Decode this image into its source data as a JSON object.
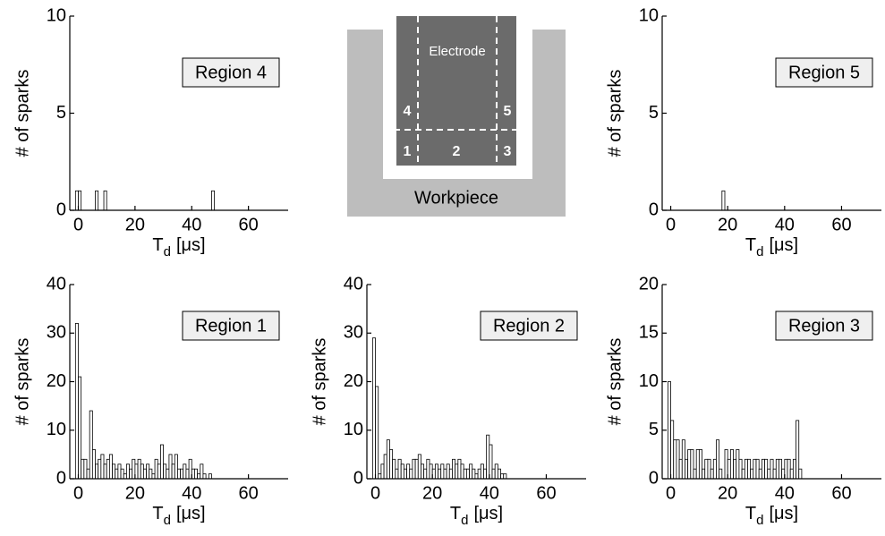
{
  "diagram": {
    "electrode": "Electrode",
    "workpiece": "Workpiece",
    "regions": [
      "1",
      "2",
      "3",
      "4",
      "5"
    ]
  },
  "chart_data": [
    {
      "type": "histogram",
      "title": "Region 4",
      "color": "#ffffff",
      "edgecolor": "#000000",
      "bins": [
        -1,
        0,
        1,
        2,
        3,
        4,
        5,
        6,
        7,
        8,
        9,
        10,
        11,
        12,
        13,
        14,
        15,
        16,
        17,
        18,
        19,
        20,
        21,
        22,
        23,
        24,
        25,
        26,
        27,
        28,
        29,
        30,
        31,
        32,
        33,
        34,
        35,
        36,
        37,
        38,
        39,
        40,
        41,
        42,
        43,
        44,
        45,
        46,
        47,
        48
      ],
      "counts": [
        1,
        1,
        0,
        0,
        0,
        0,
        0,
        1,
        0,
        0,
        1,
        0,
        0,
        0,
        0,
        0,
        0,
        0,
        0,
        0,
        0,
        0,
        0,
        0,
        0,
        0,
        0,
        0,
        0,
        0,
        0,
        0,
        0,
        0,
        0,
        0,
        0,
        0,
        0,
        0,
        0,
        0,
        0,
        0,
        0,
        0,
        0,
        0,
        1
      ],
      "xlim": [
        -3,
        74
      ],
      "ylim": [
        0,
        10
      ],
      "xticks": [
        0,
        20,
        40,
        60
      ],
      "yticks": [
        0,
        5,
        10
      ],
      "x_label": [
        "T",
        "d",
        "[μs]"
      ],
      "y_label": "# of sparks"
    },
    {
      "type": "histogram",
      "title": "Region 5",
      "color": "#ffffff",
      "edgecolor": "#000000",
      "bins": [
        -1,
        0,
        1,
        2,
        3,
        4,
        5,
        6,
        7,
        8,
        9,
        10,
        11,
        12,
        13,
        14,
        15,
        16,
        17,
        18,
        19,
        20,
        21,
        22,
        23,
        24,
        25,
        26,
        27,
        28,
        29,
        30,
        31,
        32,
        33,
        34,
        35,
        36,
        37,
        38,
        39,
        40,
        41,
        42,
        43,
        44,
        45,
        46,
        47,
        48
      ],
      "counts": [
        0,
        0,
        0,
        0,
        0,
        0,
        0,
        0,
        0,
        0,
        0,
        0,
        0,
        0,
        0,
        0,
        0,
        0,
        0,
        1,
        0,
        0,
        0,
        0,
        0,
        0,
        0,
        0,
        0,
        0,
        0,
        0,
        0,
        0,
        0,
        0,
        0,
        0,
        0,
        0,
        0,
        0,
        0,
        0,
        0,
        0,
        0,
        0,
        0
      ],
      "xlim": [
        -3,
        74
      ],
      "ylim": [
        0,
        10
      ],
      "xticks": [
        0,
        20,
        40,
        60
      ],
      "yticks": [
        0,
        5,
        10
      ],
      "x_label": [
        "T",
        "d",
        "[μs]"
      ],
      "y_label": "# of sparks"
    },
    {
      "type": "histogram",
      "title": "Region 1",
      "color": "#ffffff",
      "edgecolor": "#000000",
      "bins": [
        -1,
        0,
        1,
        2,
        3,
        4,
        5,
        6,
        7,
        8,
        9,
        10,
        11,
        12,
        13,
        14,
        15,
        16,
        17,
        18,
        19,
        20,
        21,
        22,
        23,
        24,
        25,
        26,
        27,
        28,
        29,
        30,
        31,
        32,
        33,
        34,
        35,
        36,
        37,
        38,
        39,
        40,
        41,
        42,
        43,
        44,
        45,
        46,
        47,
        48
      ],
      "counts": [
        32,
        21,
        4,
        4,
        2,
        14,
        6,
        3,
        4,
        5,
        3,
        4,
        5,
        3,
        2,
        3,
        2,
        1,
        3,
        2,
        4,
        3,
        4,
        3,
        2,
        3,
        2,
        1,
        4,
        3,
        7,
        3,
        2,
        5,
        3,
        5,
        2,
        2,
        3,
        2,
        4,
        2,
        2,
        1,
        3,
        1,
        0,
        1,
        0
      ],
      "xlim": [
        -3,
        74
      ],
      "ylim": [
        0,
        40
      ],
      "xticks": [
        0,
        20,
        40,
        60
      ],
      "yticks": [
        0,
        10,
        20,
        30,
        40
      ],
      "x_label": [
        "T",
        "d",
        "[μs]"
      ],
      "y_label": "# of sparks"
    },
    {
      "type": "histogram",
      "title": "Region 2",
      "color": "#ffffff",
      "edgecolor": "#000000",
      "bins": [
        -1,
        0,
        1,
        2,
        3,
        4,
        5,
        6,
        7,
        8,
        9,
        10,
        11,
        12,
        13,
        14,
        15,
        16,
        17,
        18,
        19,
        20,
        21,
        22,
        23,
        24,
        25,
        26,
        27,
        28,
        29,
        30,
        31,
        32,
        33,
        34,
        35,
        36,
        37,
        38,
        39,
        40,
        41,
        42,
        43,
        44,
        45,
        46,
        47,
        48
      ],
      "counts": [
        29,
        19,
        1,
        3,
        5,
        8,
        6,
        4,
        2,
        4,
        3,
        2,
        3,
        2,
        4,
        4,
        5,
        3,
        2,
        4,
        3,
        2,
        3,
        2,
        3,
        2,
        3,
        2,
        4,
        3,
        4,
        3,
        2,
        2,
        3,
        2,
        1,
        2,
        3,
        2,
        9,
        7,
        2,
        3,
        2,
        1,
        1,
        0,
        0
      ],
      "xlim": [
        -3,
        74
      ],
      "ylim": [
        0,
        40
      ],
      "xticks": [
        0,
        20,
        40,
        60
      ],
      "yticks": [
        0,
        10,
        20,
        30,
        40
      ],
      "x_label": [
        "T",
        "d",
        "[μs]"
      ],
      "y_label": "# of sparks"
    },
    {
      "type": "histogram",
      "title": "Region 3",
      "color": "#ffffff",
      "edgecolor": "#000000",
      "bins": [
        -1,
        0,
        1,
        2,
        3,
        4,
        5,
        6,
        7,
        8,
        9,
        10,
        11,
        12,
        13,
        14,
        15,
        16,
        17,
        18,
        19,
        20,
        21,
        22,
        23,
        24,
        25,
        26,
        27,
        28,
        29,
        30,
        31,
        32,
        33,
        34,
        35,
        36,
        37,
        38,
        39,
        40,
        41,
        42,
        43,
        44,
        45,
        46,
        47,
        48
      ],
      "counts": [
        10,
        6,
        4,
        4,
        2,
        4,
        2,
        3,
        3,
        1,
        3,
        3,
        1,
        2,
        2,
        1,
        2,
        4,
        1,
        0,
        3,
        2,
        3,
        2,
        3,
        2,
        1,
        2,
        2,
        1,
        2,
        2,
        1,
        2,
        2,
        1,
        2,
        1,
        2,
        2,
        1,
        2,
        2,
        1,
        2,
        6,
        1,
        0,
        0
      ],
      "xlim": [
        -3,
        74
      ],
      "ylim": [
        0,
        20
      ],
      "xticks": [
        0,
        20,
        40,
        60
      ],
      "yticks": [
        0,
        5,
        10,
        15,
        20
      ],
      "x_label": [
        "T",
        "d",
        "[μs]"
      ],
      "y_label": "# of sparks"
    }
  ]
}
